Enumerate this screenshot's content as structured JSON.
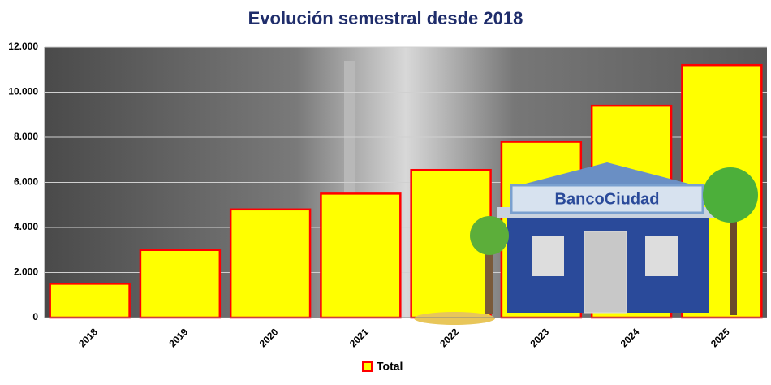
{
  "chart_data": {
    "type": "bar",
    "title": "Evolución semestral  desde 2018",
    "categories": [
      "2018",
      "2019",
      "2020",
      "2021",
      "2022",
      "2023",
      "2024",
      "2025"
    ],
    "series": [
      {
        "name": "Total",
        "color": "#ffff00",
        "values": [
          1500,
          3000,
          4800,
          5500,
          6550,
          7800,
          9400,
          11200
        ]
      }
    ],
    "ylim": [
      0,
      12000
    ],
    "yticks": [
      0,
      {
        "value": 2000,
        "label": "2.000"
      },
      {
        "value": 4000,
        "label": "4.000"
      },
      {
        "value": 6000,
        "label": "6.000"
      },
      {
        "value": 8000,
        "label": "8.000"
      },
      {
        "value": 10000,
        "label": "10.000"
      },
      {
        "value": 12000,
        "label": "12.000"
      }
    ],
    "grid": true,
    "legend": "bottom",
    "bar_border_color": "#ff0000"
  },
  "illustration": {
    "sign": "BancoCiudad"
  }
}
